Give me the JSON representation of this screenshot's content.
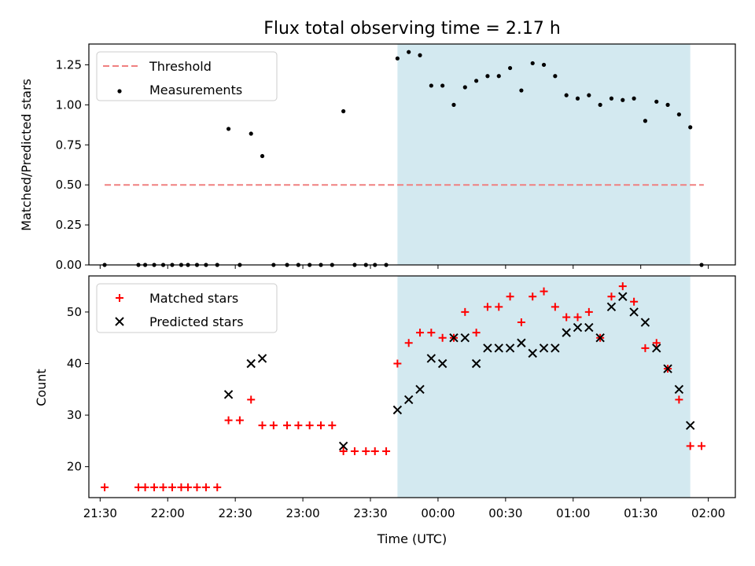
{
  "chart_data": [
    {
      "type": "scatter",
      "title": "Flux total observing time = 2.17 h",
      "ylabel": "Matched/Predicted stars",
      "xlabel": "",
      "ylim": [
        0,
        1.38
      ],
      "xlim": [
        "21:25",
        "02:12"
      ],
      "yticks": [
        "0.00",
        "0.25",
        "0.50",
        "0.75",
        "1.00",
        "1.25"
      ],
      "ytick_values": [
        0,
        0.25,
        0.5,
        0.75,
        1.0,
        1.25
      ],
      "shaded_region": {
        "start": "23:42",
        "end": "01:52",
        "color": "#d3e9f0"
      },
      "legend": {
        "position": "upper left",
        "entries": [
          "Threshold",
          "Measurements"
        ]
      },
      "threshold": {
        "name": "Threshold",
        "y": 0.5,
        "x_start": "21:32",
        "x_end": "01:58",
        "color": "#f08080",
        "style": "dashed"
      },
      "series": [
        {
          "name": "Measurements",
          "color": "#000000",
          "marker": "dot",
          "points": [
            [
              "21:32",
              0.0
            ],
            [
              "21:47",
              0.0
            ],
            [
              "21:50",
              0.0
            ],
            [
              "21:54",
              0.0
            ],
            [
              "21:58",
              0.0
            ],
            [
              "22:02",
              0.0
            ],
            [
              "22:06",
              0.0
            ],
            [
              "22:09",
              0.0
            ],
            [
              "22:13",
              0.0
            ],
            [
              "22:17",
              0.0
            ],
            [
              "22:22",
              0.0
            ],
            [
              "22:27",
              0.85
            ],
            [
              "22:32",
              0.0
            ],
            [
              "22:37",
              0.82
            ],
            [
              "22:42",
              0.68
            ],
            [
              "22:47",
              0.0
            ],
            [
              "22:53",
              0.0
            ],
            [
              "22:58",
              0.0
            ],
            [
              "23:03",
              0.0
            ],
            [
              "23:08",
              0.0
            ],
            [
              "23:13",
              0.0
            ],
            [
              "23:18",
              0.96
            ],
            [
              "23:23",
              0.0
            ],
            [
              "23:28",
              0.0
            ],
            [
              "23:32",
              0.0
            ],
            [
              "23:37",
              0.0
            ],
            [
              "23:42",
              1.29
            ],
            [
              "23:47",
              1.33
            ],
            [
              "23:52",
              1.31
            ],
            [
              "23:57",
              1.12
            ],
            [
              "00:02",
              1.12
            ],
            [
              "00:07",
              1.0
            ],
            [
              "00:12",
              1.11
            ],
            [
              "00:17",
              1.15
            ],
            [
              "00:22",
              1.18
            ],
            [
              "00:27",
              1.18
            ],
            [
              "00:32",
              1.23
            ],
            [
              "00:37",
              1.09
            ],
            [
              "00:42",
              1.26
            ],
            [
              "00:47",
              1.25
            ],
            [
              "00:52",
              1.18
            ],
            [
              "00:57",
              1.06
            ],
            [
              "01:02",
              1.04
            ],
            [
              "01:07",
              1.06
            ],
            [
              "01:12",
              1.0
            ],
            [
              "01:17",
              1.04
            ],
            [
              "01:22",
              1.03
            ],
            [
              "01:27",
              1.04
            ],
            [
              "01:32",
              0.9
            ],
            [
              "01:37",
              1.02
            ],
            [
              "01:42",
              1.0
            ],
            [
              "01:47",
              0.94
            ],
            [
              "01:52",
              0.86
            ],
            [
              "01:57",
              0.0
            ]
          ]
        }
      ]
    },
    {
      "type": "scatter",
      "title": "",
      "ylabel": "Count",
      "xlabel": "Time (UTC)",
      "ylim": [
        14,
        57
      ],
      "xlim": [
        "21:25",
        "02:12"
      ],
      "yticks": [
        "20",
        "30",
        "40",
        "50"
      ],
      "ytick_values": [
        20,
        30,
        40,
        50
      ],
      "xticks": [
        "21:30",
        "22:00",
        "22:30",
        "23:00",
        "23:30",
        "00:00",
        "00:30",
        "01:00",
        "01:30",
        "02:00"
      ],
      "shaded_region": {
        "start": "23:42",
        "end": "01:52",
        "color": "#d3e9f0"
      },
      "legend": {
        "position": "upper left",
        "entries": [
          "Matched stars",
          "Predicted stars"
        ]
      },
      "series": [
        {
          "name": "Matched stars",
          "color": "#ff0000",
          "marker": "plus",
          "points": [
            [
              "21:32",
              16
            ],
            [
              "21:47",
              16
            ],
            [
              "21:50",
              16
            ],
            [
              "21:54",
              16
            ],
            [
              "21:58",
              16
            ],
            [
              "22:02",
              16
            ],
            [
              "22:06",
              16
            ],
            [
              "22:09",
              16
            ],
            [
              "22:13",
              16
            ],
            [
              "22:17",
              16
            ],
            [
              "22:22",
              16
            ],
            [
              "22:27",
              29
            ],
            [
              "22:32",
              29
            ],
            [
              "22:37",
              33
            ],
            [
              "22:42",
              28
            ],
            [
              "22:47",
              28
            ],
            [
              "22:53",
              28
            ],
            [
              "22:58",
              28
            ],
            [
              "23:03",
              28
            ],
            [
              "23:08",
              28
            ],
            [
              "23:13",
              28
            ],
            [
              "23:18",
              23
            ],
            [
              "23:23",
              23
            ],
            [
              "23:28",
              23
            ],
            [
              "23:32",
              23
            ],
            [
              "23:37",
              23
            ],
            [
              "23:42",
              40
            ],
            [
              "23:47",
              44
            ],
            [
              "23:52",
              46
            ],
            [
              "23:57",
              46
            ],
            [
              "00:02",
              45
            ],
            [
              "00:07",
              45
            ],
            [
              "00:12",
              50
            ],
            [
              "00:17",
              46
            ],
            [
              "00:22",
              51
            ],
            [
              "00:27",
              51
            ],
            [
              "00:32",
              53
            ],
            [
              "00:37",
              48
            ],
            [
              "00:42",
              53
            ],
            [
              "00:47",
              54
            ],
            [
              "00:52",
              51
            ],
            [
              "00:57",
              49
            ],
            [
              "01:02",
              49
            ],
            [
              "01:07",
              50
            ],
            [
              "01:12",
              45
            ],
            [
              "01:17",
              53
            ],
            [
              "01:22",
              55
            ],
            [
              "01:27",
              52
            ],
            [
              "01:32",
              43
            ],
            [
              "01:37",
              44
            ],
            [
              "01:42",
              39
            ],
            [
              "01:47",
              33
            ],
            [
              "01:52",
              24
            ],
            [
              "01:57",
              24
            ]
          ]
        },
        {
          "name": "Predicted stars",
          "color": "#000000",
          "marker": "x",
          "points": [
            [
              "22:27",
              34
            ],
            [
              "22:37",
              40
            ],
            [
              "22:42",
              41
            ],
            [
              "23:18",
              24
            ],
            [
              "23:42",
              31
            ],
            [
              "23:47",
              33
            ],
            [
              "23:52",
              35
            ],
            [
              "23:57",
              41
            ],
            [
              "00:02",
              40
            ],
            [
              "00:07",
              45
            ],
            [
              "00:12",
              45
            ],
            [
              "00:17",
              40
            ],
            [
              "00:22",
              43
            ],
            [
              "00:27",
              43
            ],
            [
              "00:32",
              43
            ],
            [
              "00:37",
              44
            ],
            [
              "00:42",
              42
            ],
            [
              "00:47",
              43
            ],
            [
              "00:52",
              43
            ],
            [
              "00:57",
              46
            ],
            [
              "01:02",
              47
            ],
            [
              "01:07",
              47
            ],
            [
              "01:12",
              45
            ],
            [
              "01:17",
              51
            ],
            [
              "01:22",
              53
            ],
            [
              "01:27",
              50
            ],
            [
              "01:32",
              48
            ],
            [
              "01:37",
              43
            ],
            [
              "01:42",
              39
            ],
            [
              "01:47",
              35
            ],
            [
              "01:52",
              28
            ]
          ]
        }
      ]
    }
  ]
}
